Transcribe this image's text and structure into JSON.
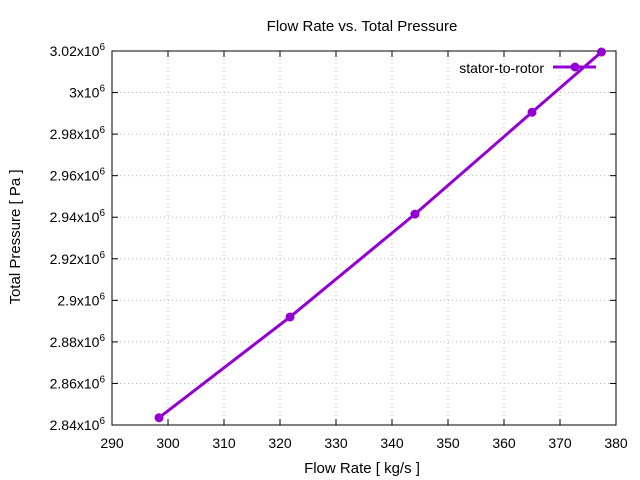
{
  "chart_data": {
    "type": "line",
    "title": "Flow Rate vs. Total Pressure",
    "xlabel": "Flow Rate [ kg/s ]",
    "ylabel": "Total Pressure [ Pa ]",
    "xlim": [
      290,
      380
    ],
    "ylim": [
      2840000,
      3020000
    ],
    "x_ticks": [
      290,
      300,
      310,
      320,
      330,
      340,
      350,
      360,
      370,
      380
    ],
    "y_ticks": [
      {
        "value": 2840000,
        "mantissa": "2.84x10",
        "exp": "6"
      },
      {
        "value": 2860000,
        "mantissa": "2.86x10",
        "exp": "6"
      },
      {
        "value": 2880000,
        "mantissa": "2.88x10",
        "exp": "6"
      },
      {
        "value": 2900000,
        "mantissa": "2.9x10",
        "exp": "6"
      },
      {
        "value": 2920000,
        "mantissa": "2.92x10",
        "exp": "6"
      },
      {
        "value": 2940000,
        "mantissa": "2.94x10",
        "exp": "6"
      },
      {
        "value": 2960000,
        "mantissa": "2.96x10",
        "exp": "6"
      },
      {
        "value": 2980000,
        "mantissa": "2.98x10",
        "exp": "6"
      },
      {
        "value": 3000000,
        "mantissa": "3x10",
        "exp": "6"
      },
      {
        "value": 3020000,
        "mantissa": "3.02x10",
        "exp": "6"
      }
    ],
    "grid": true,
    "legend_position": "top-right",
    "series": [
      {
        "name": "stator-to-rotor",
        "color": "#9400d3",
        "x": [
          298.4,
          321.8,
          344.1,
          365.0,
          377.4
        ],
        "y": [
          2843500,
          2892000,
          2941500,
          2990500,
          3019500
        ]
      }
    ]
  }
}
